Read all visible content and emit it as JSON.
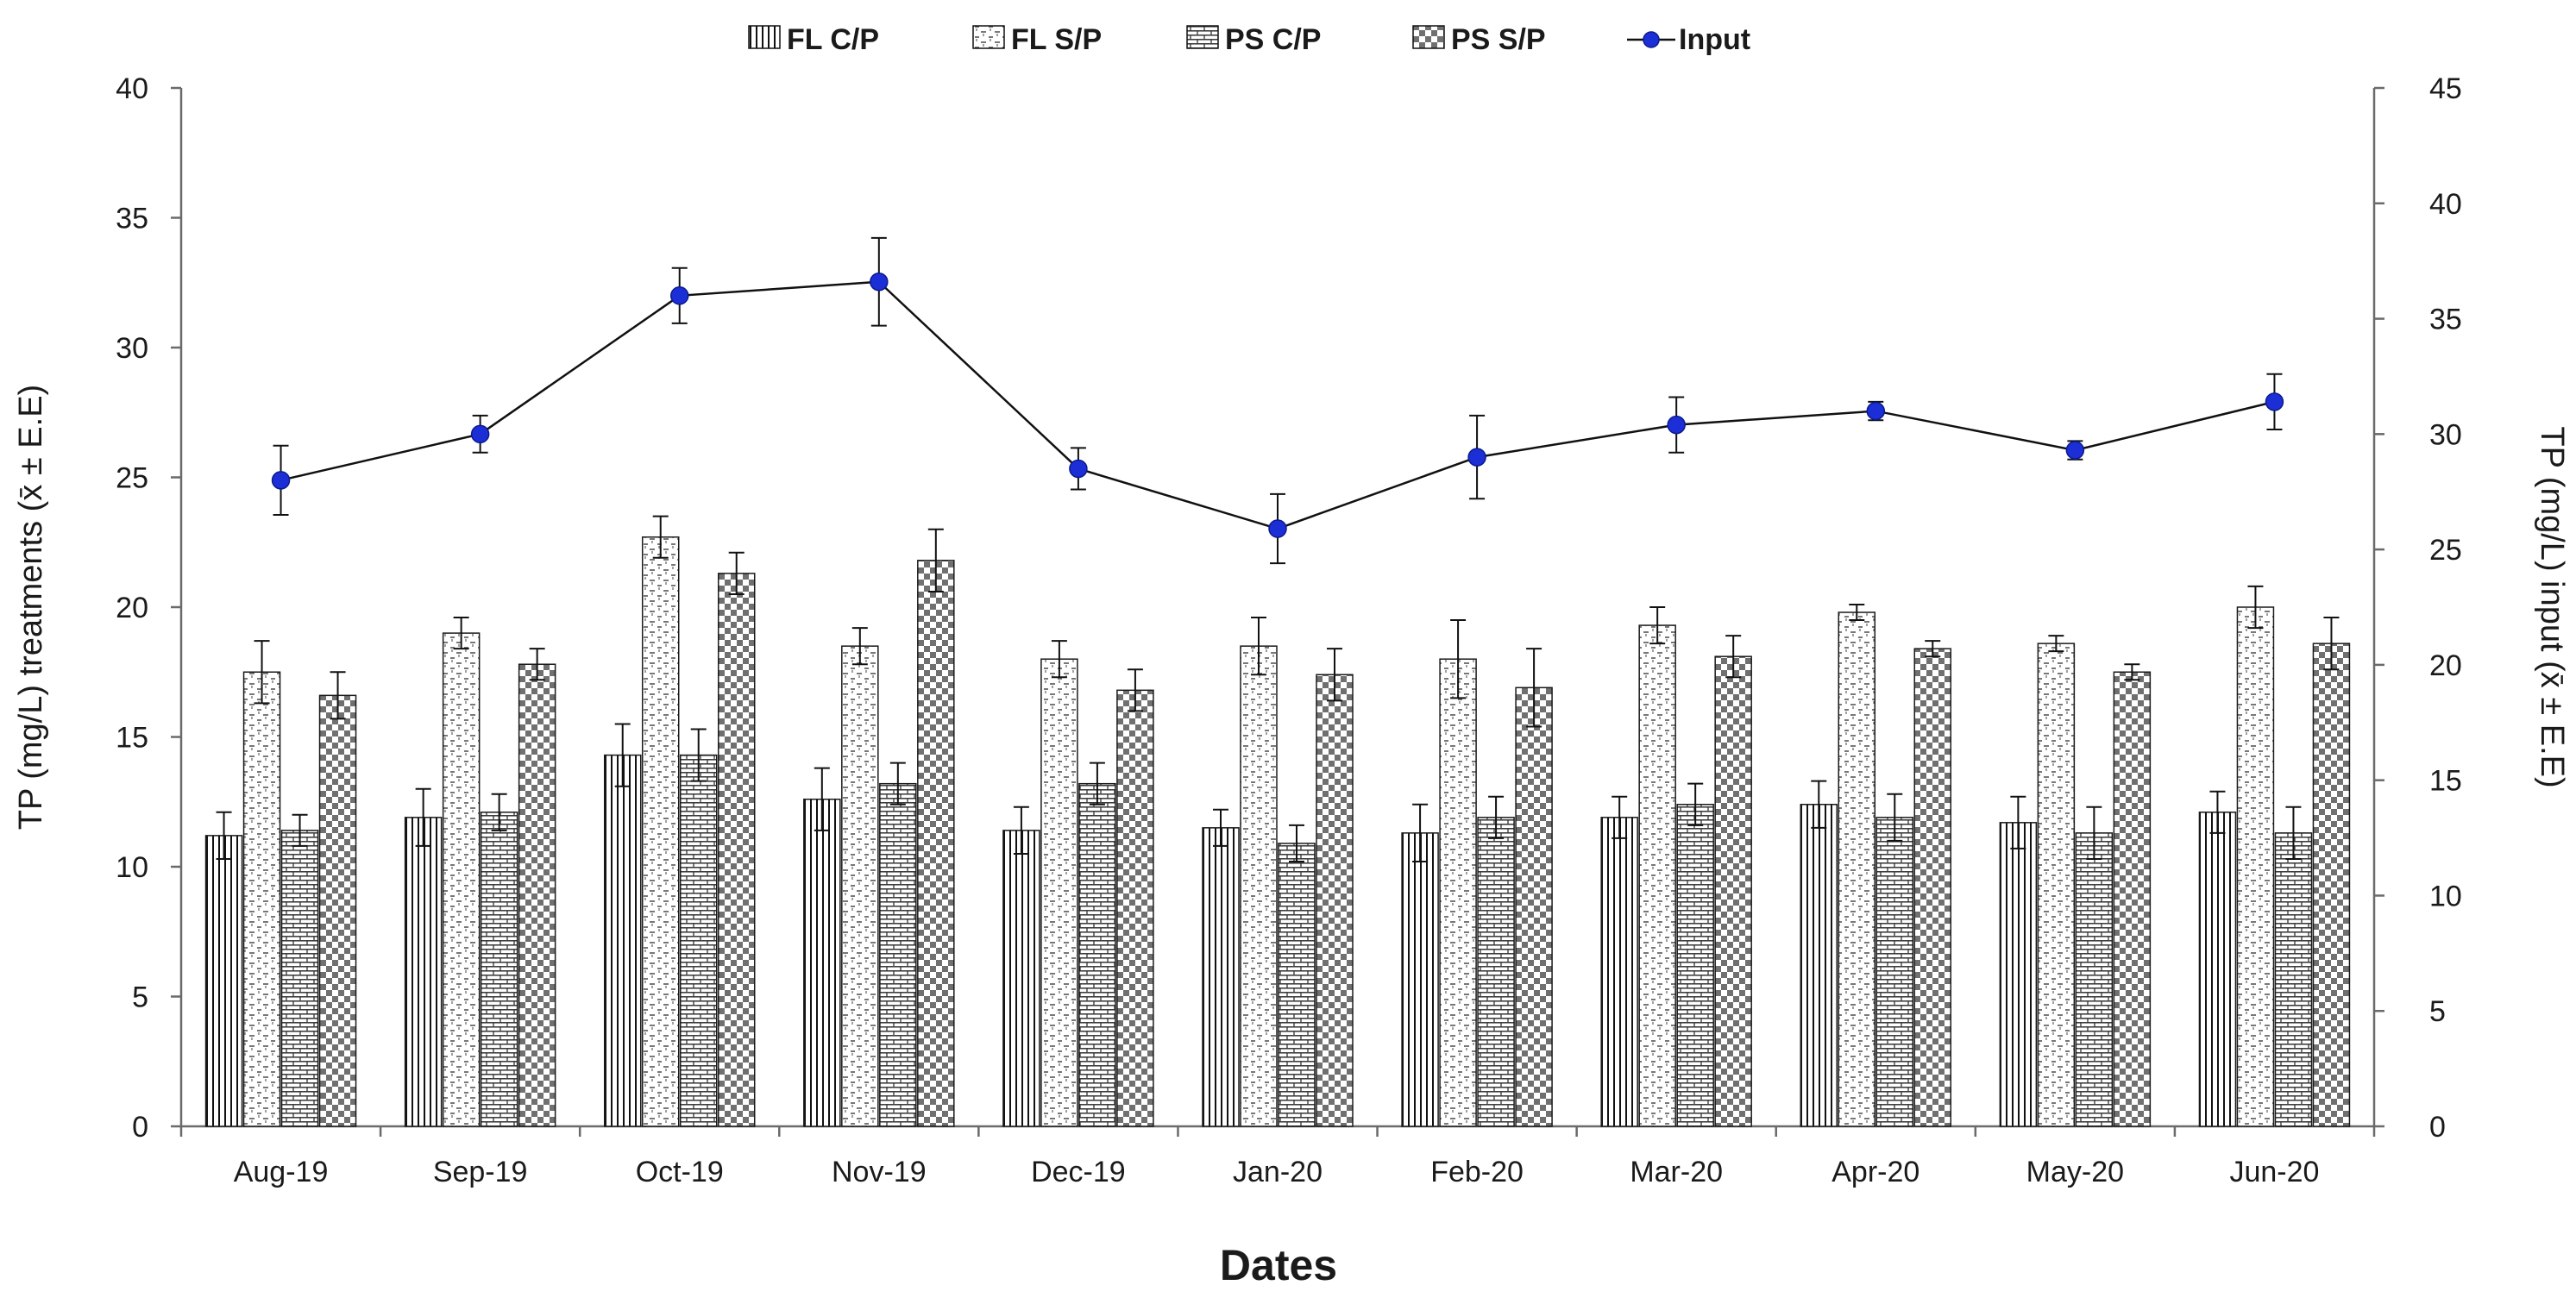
{
  "chart_data": {
    "type": "bar",
    "title": "",
    "xlabel": "Dates",
    "ylabel": "TP (mg/L) treatments (x̄ ± E.E)",
    "y2label": "TP (mg/L) input (x̄ ± E.E)",
    "ylim": [
      0,
      40
    ],
    "y2lim": [
      0,
      45
    ],
    "yticks": [
      "0",
      "5",
      "10",
      "15",
      "20",
      "25",
      "30",
      "35",
      "40"
    ],
    "y2ticks": [
      "0",
      "5",
      "10",
      "15",
      "20",
      "25",
      "30",
      "35",
      "40",
      "45"
    ],
    "grid": false,
    "legend_position": "top-center",
    "categories": [
      "Aug-19",
      "Sep-19",
      "Oct-19",
      "Nov-19",
      "Dec-19",
      "Jan-20",
      "Feb-20",
      "Mar-20",
      "Apr-20",
      "May-20",
      "Jun-20"
    ],
    "series": [
      {
        "name": "FL C/P",
        "type": "bar",
        "pattern": "vertical-lines",
        "values": [
          11.2,
          11.9,
          14.3,
          12.6,
          11.4,
          11.5,
          11.3,
          11.9,
          12.4,
          11.7,
          12.1
        ],
        "errors": [
          0.9,
          1.1,
          1.2,
          1.2,
          0.9,
          0.7,
          1.1,
          0.8,
          0.9,
          1.0,
          0.8
        ]
      },
      {
        "name": "FL S/P",
        "type": "bar",
        "pattern": "dashed-grid",
        "values": [
          17.5,
          19.0,
          22.7,
          18.5,
          18.0,
          18.5,
          18.0,
          19.3,
          19.8,
          18.6,
          20.0
        ],
        "errors": [
          1.2,
          0.6,
          0.8,
          0.7,
          0.7,
          1.1,
          1.5,
          0.7,
          0.3,
          0.3,
          0.8
        ]
      },
      {
        "name": "PS C/P",
        "type": "bar",
        "pattern": "brick",
        "values": [
          11.4,
          12.1,
          14.3,
          13.2,
          13.2,
          10.9,
          11.9,
          12.4,
          11.9,
          11.3,
          11.3
        ],
        "errors": [
          0.6,
          0.7,
          1.0,
          0.8,
          0.8,
          0.7,
          0.8,
          0.8,
          0.9,
          1.0,
          1.0
        ]
      },
      {
        "name": "PS S/P",
        "type": "bar",
        "pattern": "checker",
        "values": [
          16.6,
          17.8,
          21.3,
          21.8,
          16.8,
          17.4,
          16.9,
          18.1,
          18.4,
          17.5,
          18.6
        ],
        "errors": [
          0.9,
          0.6,
          0.8,
          1.2,
          0.8,
          1.0,
          1.5,
          0.8,
          0.3,
          0.3,
          1.0
        ]
      }
    ],
    "line_series": {
      "name": "Input",
      "type": "line",
      "axis": "right",
      "color": "#1c2fd6",
      "values": [
        28.0,
        30.0,
        36.0,
        36.6,
        28.5,
        25.9,
        29.0,
        30.4,
        31.0,
        29.3,
        31.4
      ],
      "errors": [
        1.5,
        0.8,
        1.2,
        1.9,
        0.9,
        1.5,
        1.8,
        1.2,
        0.4,
        0.4,
        1.2
      ]
    }
  }
}
